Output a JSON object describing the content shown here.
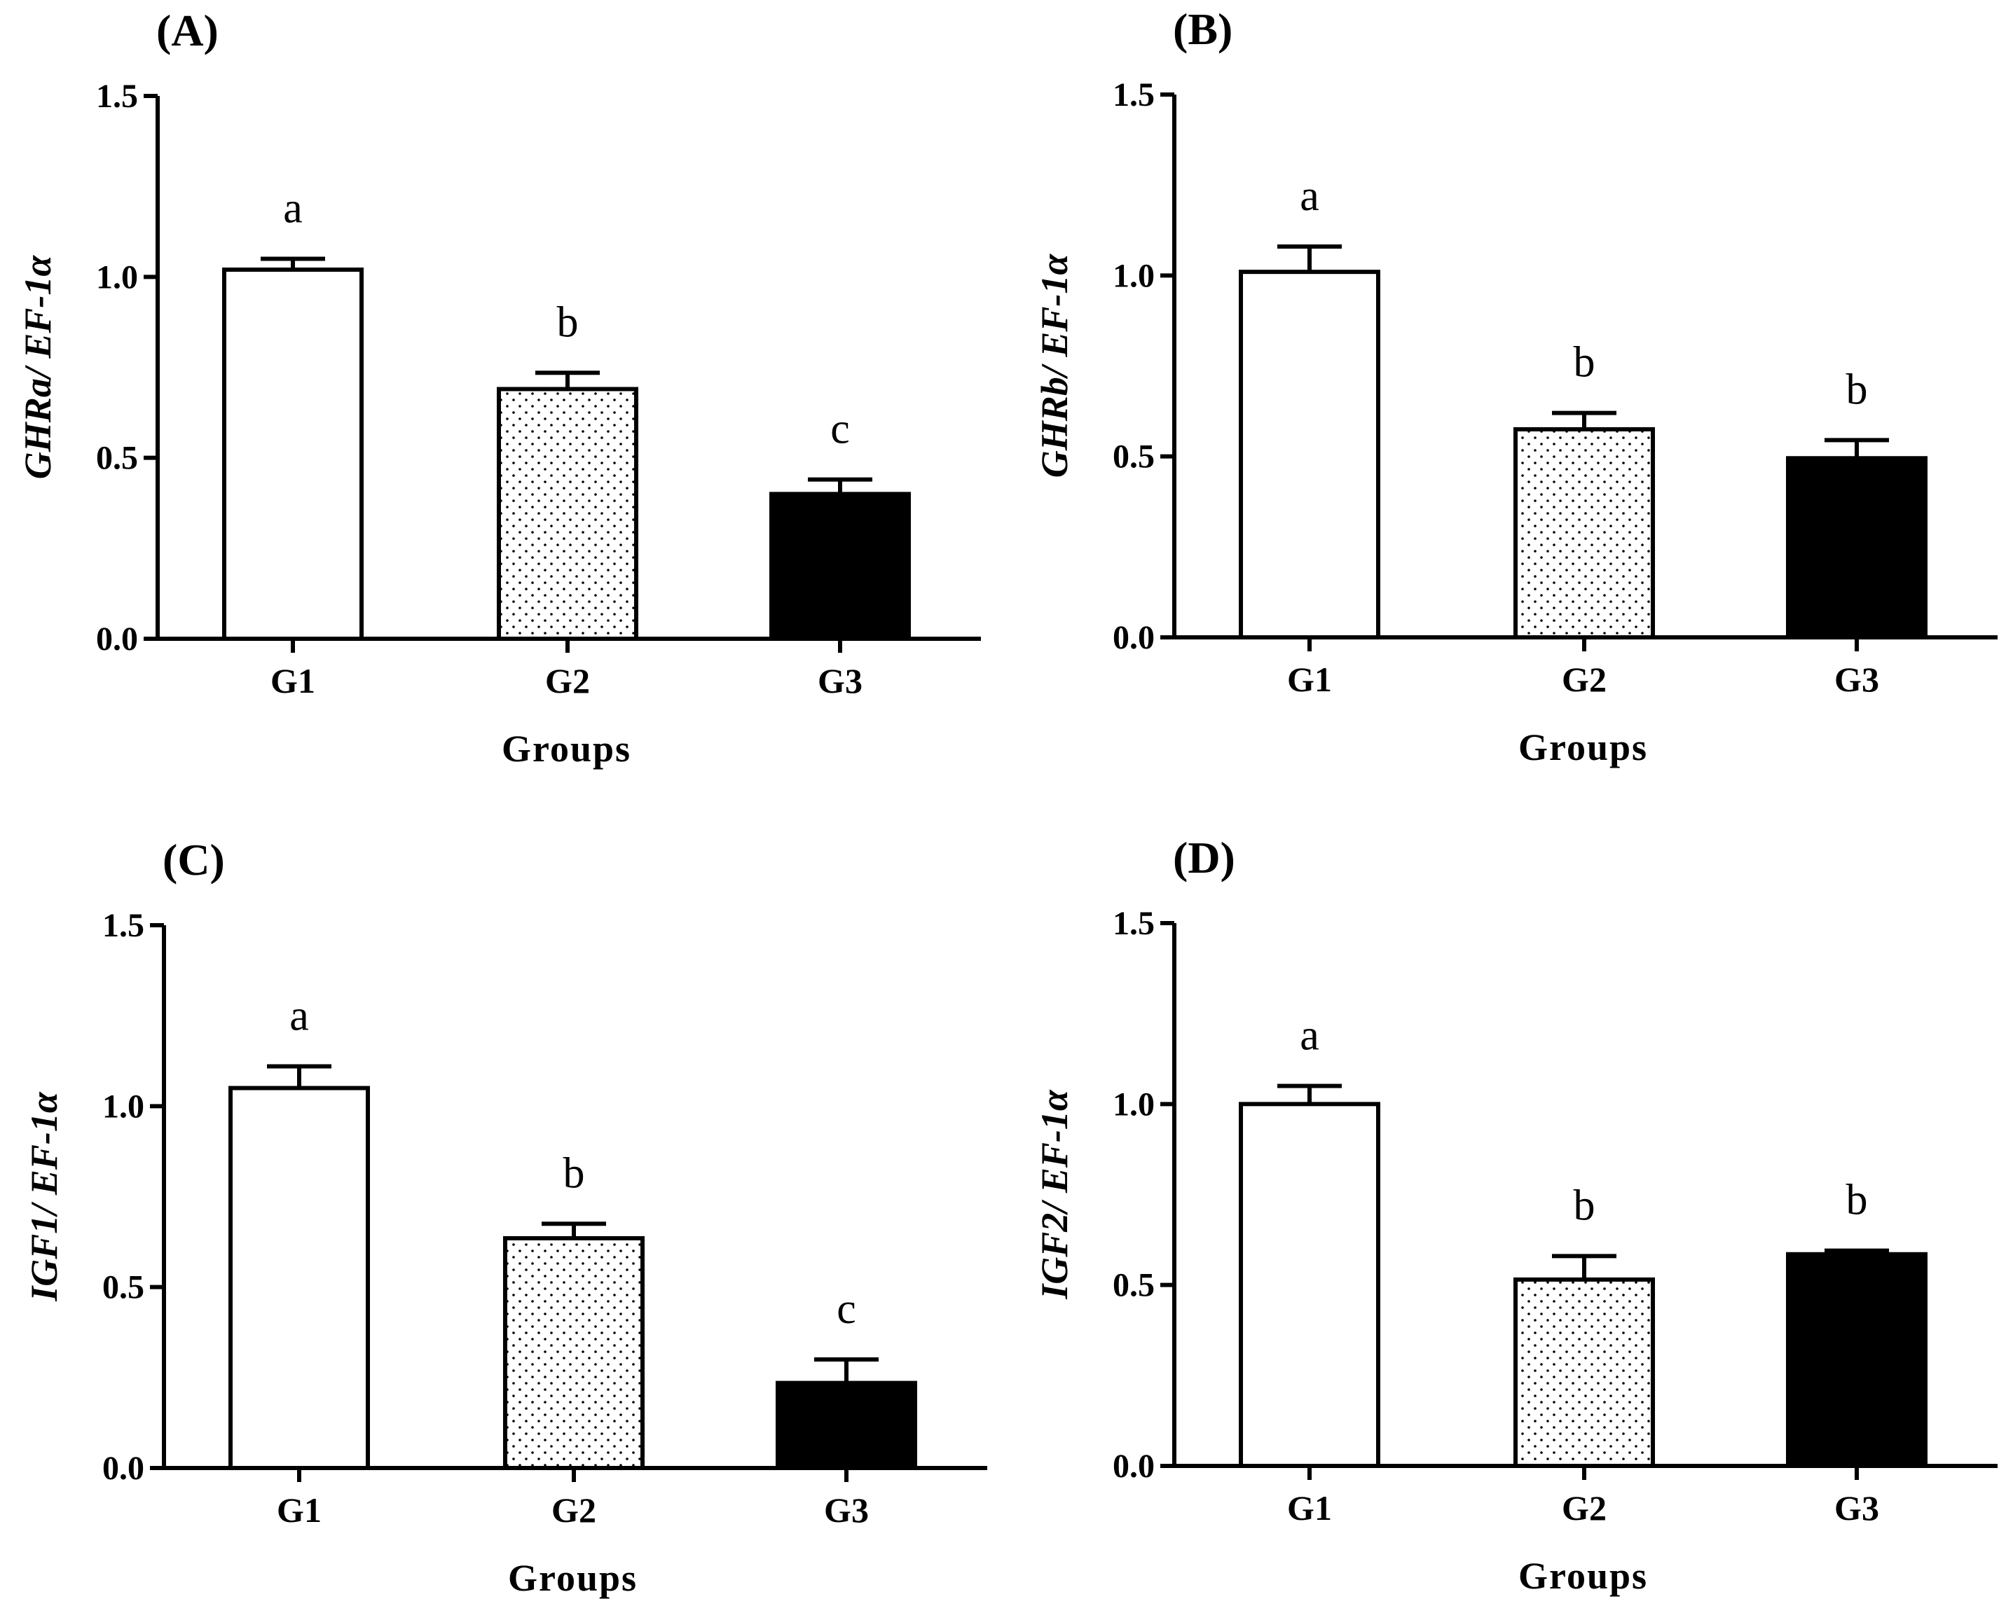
{
  "chart_data": [
    {
      "type": "bar",
      "panel": "(A)",
      "ylabel": "GHRa/ EF-1α",
      "xlabel": "Groups",
      "categories": [
        "G1",
        "G2",
        "G3"
      ],
      "values": [
        1.02,
        0.69,
        0.4
      ],
      "errors": [
        0.03,
        0.045,
        0.04
      ],
      "significance": [
        "a",
        "b",
        "c"
      ],
      "fills": [
        "white",
        "dotted",
        "black"
      ],
      "ylim": [
        0,
        1.5
      ],
      "yticks": [
        "0.0",
        "0.5",
        "1.0",
        "1.5"
      ]
    },
    {
      "type": "bar",
      "panel": "(B)",
      "ylabel": "GHRb/ EF-1α",
      "xlabel": "Groups",
      "categories": [
        "G1",
        "G2",
        "G3"
      ],
      "values": [
        1.01,
        0.575,
        0.495
      ],
      "errors": [
        0.07,
        0.045,
        0.05
      ],
      "significance": [
        "a",
        "b",
        "b"
      ],
      "fills": [
        "white",
        "dotted",
        "black"
      ],
      "ylim": [
        0,
        1.5
      ],
      "yticks": [
        "0.0",
        "0.5",
        "1.0",
        "1.5"
      ]
    },
    {
      "type": "bar",
      "panel": "(C)",
      "ylabel": "IGF1/ EF-1α",
      "xlabel": "Groups",
      "categories": [
        "G1",
        "G2",
        "G3"
      ],
      "values": [
        1.05,
        0.635,
        0.235
      ],
      "errors": [
        0.06,
        0.04,
        0.065
      ],
      "significance": [
        "a",
        "b",
        "c"
      ],
      "fills": [
        "white",
        "dotted",
        "black"
      ],
      "ylim": [
        0,
        1.5
      ],
      "yticks": [
        "0.0",
        "0.5",
        "1.0",
        "1.5"
      ]
    },
    {
      "type": "bar",
      "panel": "(D)",
      "ylabel": "IGF2/ EF-1α",
      "xlabel": "Groups",
      "categories": [
        "G1",
        "G2",
        "G3"
      ],
      "values": [
        1.0,
        0.515,
        0.585
      ],
      "errors": [
        0.05,
        0.065,
        0.01
      ],
      "significance": [
        "a",
        "b",
        "b"
      ],
      "fills": [
        "white",
        "dotted",
        "black"
      ],
      "ylim": [
        0,
        1.5
      ],
      "yticks": [
        "0.0",
        "0.5",
        "1.0",
        "1.5"
      ]
    }
  ]
}
